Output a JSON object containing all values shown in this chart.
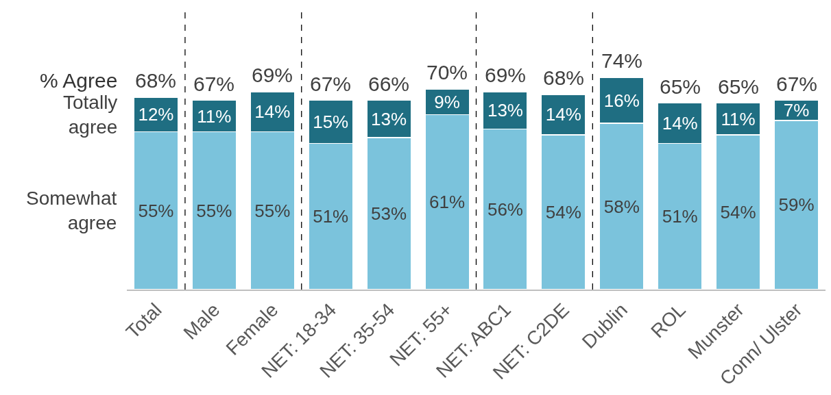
{
  "chart_data": {
    "type": "bar",
    "stacked": true,
    "categories": [
      "Total",
      "Male",
      "Female",
      "NET: 18-34",
      "NET: 35-54",
      "NET: 55+",
      "NET: ABC1",
      "NET: C2DE",
      "Dublin",
      "ROL",
      "Munster",
      "Conn/ Ulster"
    ],
    "series": [
      {
        "name": "Somewhat agree",
        "color": "#7bc3dc",
        "values": [
          55,
          55,
          55,
          51,
          53,
          61,
          56,
          54,
          58,
          51,
          54,
          59
        ],
        "value_labels": [
          "55%",
          "55%",
          "55%",
          "51%",
          "53%",
          "61%",
          "56%",
          "54%",
          "58%",
          "51%",
          "54%",
          "59%"
        ]
      },
      {
        "name": "Totally agree",
        "color": "#1f6e82",
        "values": [
          12,
          11,
          14,
          15,
          13,
          9,
          13,
          14,
          16,
          14,
          11,
          7
        ],
        "value_labels": [
          "12%",
          "11%",
          "14%",
          "15%",
          "13%",
          "9%",
          "13%",
          "14%",
          "16%",
          "14%",
          "11%",
          "7%"
        ]
      }
    ],
    "totals": [
      "68%",
      "67%",
      "69%",
      "67%",
      "66%",
      "70%",
      "69%",
      "68%",
      "74%",
      "65%",
      "65%",
      "67%"
    ],
    "annotations": [
      "% Agree"
    ],
    "tick_labels": "x",
    "legend": false
  }
}
